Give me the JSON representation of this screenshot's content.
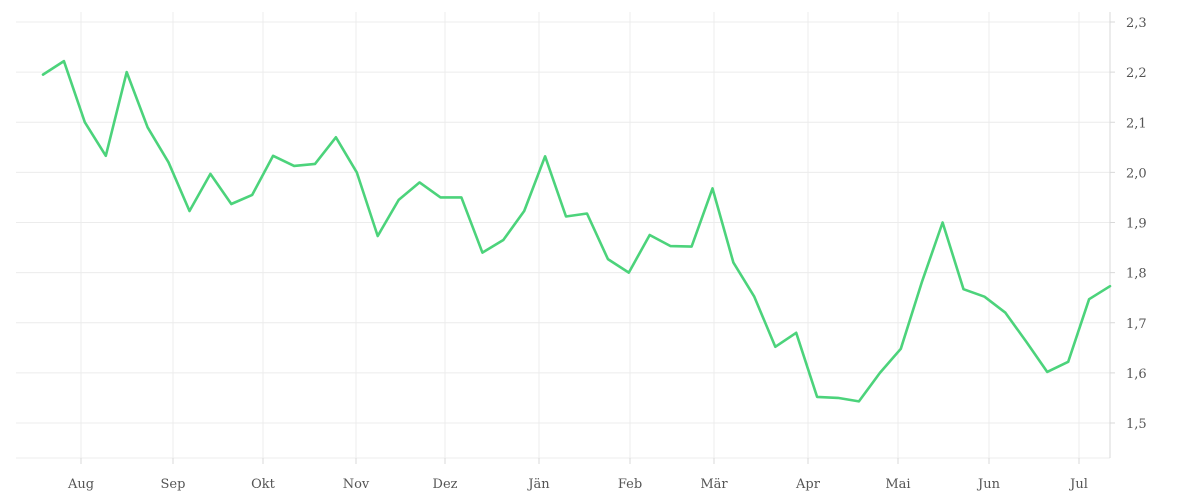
{
  "chart_data": {
    "type": "line",
    "title": "",
    "xlabel": "",
    "ylabel": "",
    "ylim": [
      1.42,
      2.33
    ],
    "y_ticks": [
      "1,5",
      "1,6",
      "1,7",
      "1,8",
      "1,9",
      "2,0",
      "2,1",
      "2,2",
      "2,3"
    ],
    "y_tick_values": [
      1.5,
      1.6,
      1.7,
      1.8,
      1.9,
      2.0,
      2.1,
      2.2,
      2.3
    ],
    "x_ticks": [
      "Aug",
      "Sep",
      "Okt",
      "Nov",
      "Dez",
      "Jän",
      "Feb",
      "Mär",
      "Apr",
      "Mai",
      "Jun",
      "Jul"
    ],
    "grid": true,
    "y_axis_position": "right",
    "series": [
      {
        "color": "#4cd37b",
        "values": [
          2.195,
          2.222,
          2.1,
          2.033,
          2.2,
          2.09,
          2.02,
          1.923,
          1.997,
          1.937,
          1.955,
          2.033,
          2.013,
          2.017,
          2.07,
          2.0,
          1.873,
          1.945,
          1.98,
          1.95,
          1.95,
          1.84,
          1.865,
          1.923,
          2.032,
          1.912,
          1.918,
          1.827,
          1.8,
          1.875,
          1.853,
          1.852,
          1.968,
          1.82,
          1.752,
          1.652,
          1.68,
          1.552,
          1.55,
          1.543,
          1.6,
          1.648,
          1.78,
          1.9,
          1.767,
          1.752,
          1.72,
          1.662,
          1.602,
          1.622,
          1.747,
          1.773
        ]
      }
    ]
  }
}
